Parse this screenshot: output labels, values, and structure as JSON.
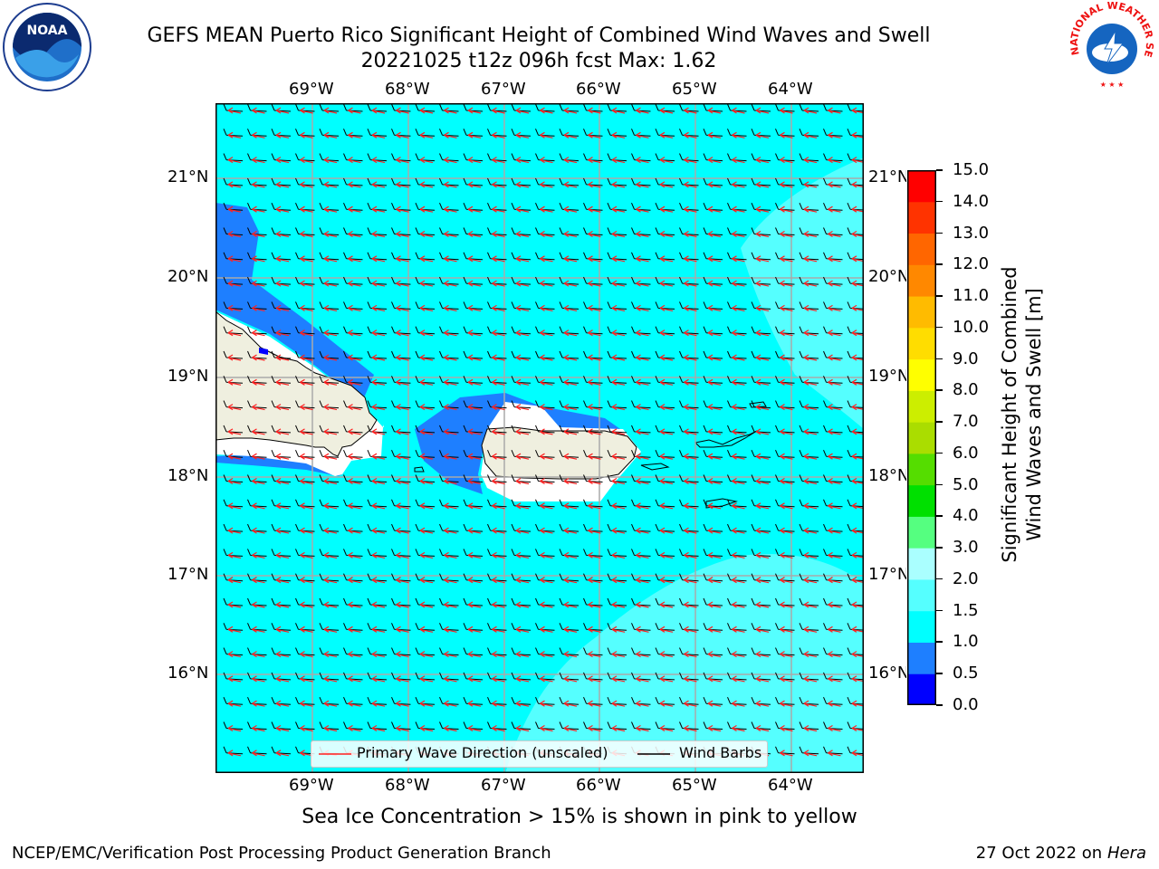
{
  "title": {
    "line1": "GEFS MEAN Puerto Rico Significant Height of Combined Wind Waves and Swell",
    "line2": "20221025 t12z 096h fcst   Max: 1.62"
  },
  "logos": {
    "left": "NOAA",
    "right_top": "NATIONAL WEATHER SERVICE"
  },
  "map": {
    "lon_labels": [
      "69°W",
      "68°W",
      "67°W",
      "66°W",
      "65°W",
      "64°W"
    ],
    "lat_labels": [
      "21°N",
      "20°N",
      "19°N",
      "18°N",
      "17°N",
      "16°N"
    ],
    "colors": {
      "ocean_main": "#00ffff",
      "ocean_high": "#55ffff",
      "ocean_low": "#1e7fff",
      "land": "#efefdf",
      "coast_white": "#ffffff",
      "arrow": "#ff2020",
      "barb": "#000000"
    }
  },
  "legend": {
    "wave_direction": "Primary Wave Direction (unscaled)",
    "wind_barbs": "Wind Barbs"
  },
  "colorbar": {
    "label": "Significant Height of Combined Wind Waves and Swell [m]",
    "label_line1": "Significant Height of Combined",
    "label_line2": "Wind Waves and Swell [m]",
    "ticks": [
      "0.0",
      "0.5",
      "1.0",
      "1.5",
      "2.0",
      "3.0",
      "4.0",
      "5.0",
      "6.0",
      "7.0",
      "8.0",
      "9.0",
      "10.0",
      "11.0",
      "12.0",
      "13.0",
      "14.0",
      "15.0"
    ],
    "colors": [
      "#0000ff",
      "#1e7fff",
      "#00ffff",
      "#55ffff",
      "#aaffff",
      "#55ff80",
      "#00e000",
      "#55dd00",
      "#aadd00",
      "#ccee00",
      "#ffff00",
      "#ffdd00",
      "#ffbb00",
      "#ff8800",
      "#ff6600",
      "#ff3300",
      "#ff0000"
    ]
  },
  "caption": "Sea Ice Concentration > 15% is shown in pink to yellow",
  "footer": {
    "left": "NCEP/EMC/Verification Post Processing Product Generation Branch",
    "right_date": "27 Oct 2022 on ",
    "right_machine": "Hera"
  }
}
